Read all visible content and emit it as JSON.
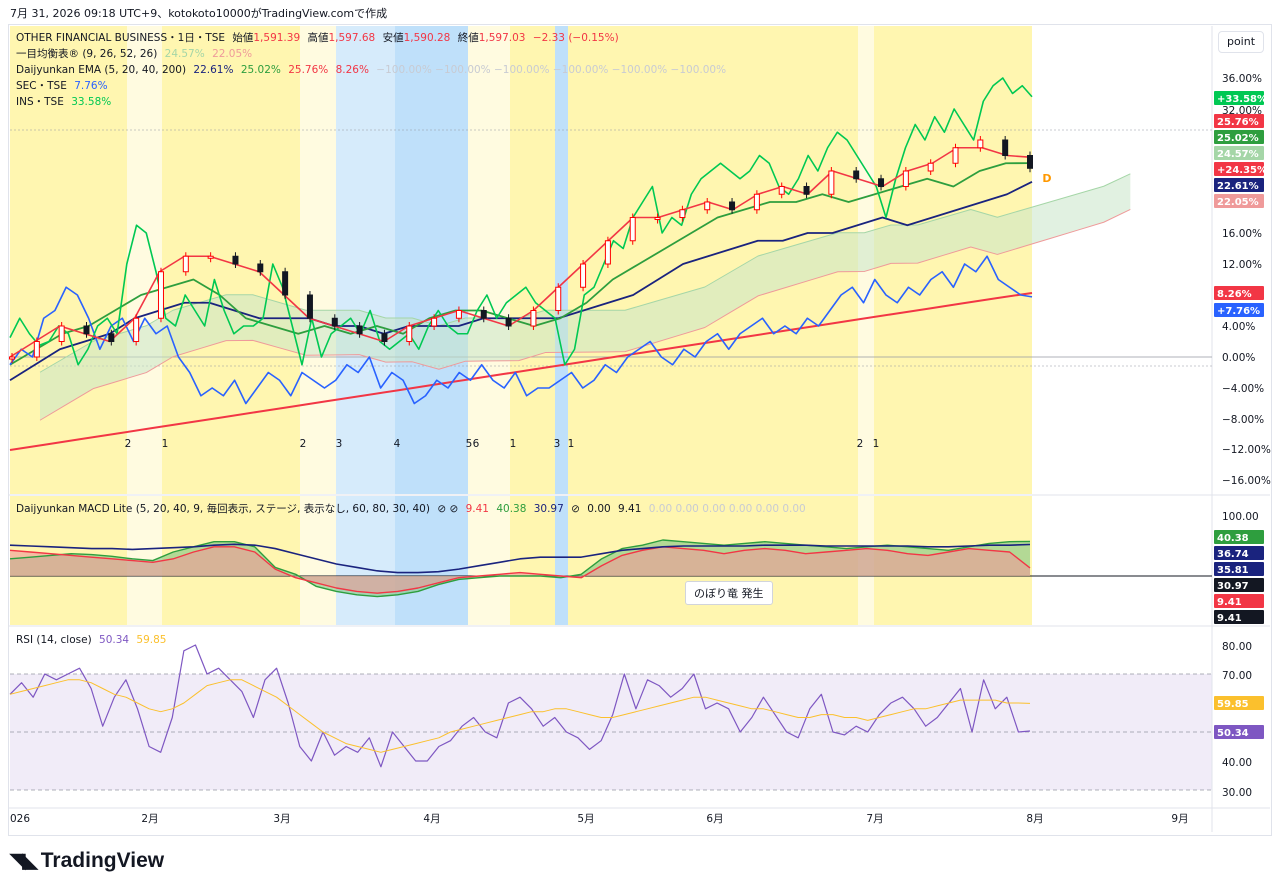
{
  "header": {
    "title": "7月 31, 2026 09:18 UTC+9、kotokoto10000がTradingView.comで作成"
  },
  "scale_button": "point",
  "main_legend": {
    "symbol": "OTHER FINANCIAL BUSINESS・1日・TSE",
    "o_label": "始値",
    "o": "1,591.39",
    "h_label": "高値",
    "h": "1,597.68",
    "l_label": "安値",
    "l": "1,590.28",
    "c_label": "終値",
    "c": "1,597.03",
    "chg": "−2.33 (−0.15%)",
    "ichimoku_name": "一目均衡表® (9, 26, 52, 26)",
    "ichimoku_v1": "24.57%",
    "ichimoku_v2": "22.05%",
    "ema_name": "Daijyunkan EMA (5, 20, 40, 200)",
    "ema_v1": "22.61%",
    "ema_v2": "25.02%",
    "ema_v3": "25.76%",
    "ema_v4": "8.26%",
    "ema_extra": "−100.00%  −100.00%  −100.00%  −100.00%  −100.00%  −100.00%",
    "sec_name": "SEC・TSE",
    "sec_val": "7.76%",
    "ins_name": "INS・TSE",
    "ins_val": "33.58%"
  },
  "macd_legend": {
    "name": "Daijyunkan MACD Lite (5, 20, 40, 9, 毎回表示, ステージ, 表示なし, 60, 80, 30, 40)",
    "icons": "⊘  ⊘",
    "v1": "9.41",
    "v2": "40.38",
    "v3": "30.97",
    "icon3": "⊘",
    "v4": "0.00",
    "v5": "9.41",
    "faint": "0.00  0.00  0.00  0.00  0.00  0.00"
  },
  "rsi_legend": {
    "name": "RSI (14, close)",
    "v1": "50.34",
    "v2": "59.85"
  },
  "tooltip": "のぼり竜 発生",
  "main_axis": [
    "36.00%",
    "32.00%",
    "16.00%",
    "12.00%",
    "4.00%",
    "0.00%",
    "−4.00%",
    "−8.00%",
    "−12.00%",
    "−16.00%"
  ],
  "macd_axis": [
    "100.00"
  ],
  "rsi_axis": [
    "80.00",
    "70.00",
    "40.00",
    "30.00"
  ],
  "main_badges": [
    {
      "text": "+33.58%",
      "color": "#00c853"
    },
    {
      "text": "25.76%",
      "color": "#f23645"
    },
    {
      "text": "25.02%",
      "color": "#2e9e3e"
    },
    {
      "text": "24.57%",
      "color": "#a5d6a7",
      "dark": true
    },
    {
      "text": "+24.35%",
      "color": "#f23645"
    },
    {
      "text": "22.61%",
      "color": "#1a237e"
    },
    {
      "text": "22.05%",
      "color": "#ef9a9a",
      "dark": true
    },
    {
      "text": "8.26%",
      "color": "#f23645"
    },
    {
      "text": "+7.76%",
      "color": "#2962ff"
    }
  ],
  "macd_badges": [
    {
      "text": "40.38",
      "color": "#2e9e3e"
    },
    {
      "text": "36.74",
      "color": "#1a237e"
    },
    {
      "text": "35.81",
      "color": "#1a237e"
    },
    {
      "text": "30.97",
      "color": "#131722"
    },
    {
      "text": "9.41",
      "color": "#f23645"
    },
    {
      "text": "9.41",
      "color": "#131722"
    }
  ],
  "rsi_badges": [
    {
      "text": "59.85",
      "color": "#fbc02d",
      "dark": true
    },
    {
      "text": "50.34",
      "color": "#7e57c2"
    }
  ],
  "x_labels": [
    "026",
    "2月",
    "3月",
    "4月",
    "5月",
    "6月",
    "7月",
    "8月",
    "9月"
  ],
  "stage_markers": [
    "2",
    "1",
    "2",
    "3",
    "4",
    "5",
    "6",
    "1",
    "3",
    "1",
    "2",
    "1"
  ],
  "pct_marker": "D",
  "logo": "TradingView",
  "chart_data": {
    "type": "line",
    "title": "OTHER FINANCIAL BUSINESS・1日・TSE",
    "y_unit": "%",
    "ylim": [
      -16,
      38
    ],
    "x_range": [
      "2026-01-01",
      "2026-09-15"
    ],
    "series": [
      {
        "name": "INS・TSE",
        "last": 33.58,
        "values": [
          2.5,
          5,
          3,
          1.5,
          2,
          4,
          3,
          -1,
          1,
          4,
          5,
          3,
          12,
          17,
          16,
          11,
          5,
          4,
          8,
          6,
          4,
          10,
          6,
          3,
          4,
          4,
          5,
          12,
          9,
          4,
          -1,
          5,
          0,
          3,
          4,
          5,
          3,
          6,
          2,
          1,
          2,
          3,
          1,
          4,
          6,
          4,
          3,
          3,
          6,
          8,
          5,
          7,
          8,
          9,
          7,
          6,
          5,
          -1,
          1,
          8,
          9,
          12,
          15,
          14,
          18,
          20,
          22,
          16,
          18,
          17,
          21,
          23,
          24,
          25,
          24,
          23,
          24,
          26,
          25,
          22,
          21,
          23,
          26,
          24,
          27,
          29,
          28,
          26,
          24,
          22,
          18,
          23,
          27,
          30,
          28,
          31,
          29,
          32,
          30,
          28,
          33,
          35,
          36,
          34,
          35,
          33.58
        ]
      },
      {
        "name": "SEC・TSE",
        "last": 7.76,
        "values": [
          -1,
          1,
          0,
          5,
          6,
          9,
          8,
          5,
          1,
          4,
          5,
          2,
          5,
          3,
          4,
          0,
          -2,
          -5,
          -4,
          -5,
          -3,
          -6,
          -4,
          -2,
          -3,
          -5,
          -2,
          -3,
          -4,
          -3,
          -1,
          -2,
          0,
          -4,
          -2,
          -3,
          -6,
          -5,
          -3,
          -4,
          -2,
          -3,
          -1,
          -3,
          -4,
          -2,
          -5,
          -4,
          -4,
          -3,
          -2,
          -4,
          -3,
          -1,
          -2,
          0,
          1,
          2,
          0,
          -1,
          1,
          0,
          2,
          3,
          1,
          3,
          4,
          5,
          3,
          4,
          3,
          5,
          4,
          6,
          8,
          9,
          7,
          10,
          8,
          7,
          9,
          8,
          10,
          11,
          9,
          12,
          11,
          13,
          10,
          9,
          8,
          7.76
        ]
      },
      {
        "name": "EMA200",
        "last": 8.26,
        "values": [
          -12,
          -11.3,
          -10.6,
          -9.9,
          -9.2,
          -8.5,
          -7.8,
          -7.1,
          -6.4,
          -5.7,
          -5,
          -4.3,
          -3.6,
          -2.9,
          -2.2,
          -1.5,
          -0.8,
          -0.1,
          0.6,
          1.3,
          2,
          2.7,
          3.4,
          4.1,
          4.8,
          5.5,
          6.2,
          6.9,
          7.6,
          8.26
        ]
      },
      {
        "name": "EMA40",
        "last": 22.61,
        "values": [
          -3,
          -1,
          1,
          2,
          3,
          5,
          6,
          7,
          7,
          6,
          5,
          5,
          5,
          4,
          4,
          3,
          4,
          4,
          4,
          5,
          5,
          5,
          5,
          6,
          7,
          8,
          10,
          12,
          13,
          14,
          15,
          15,
          16,
          16,
          17,
          18,
          17,
          18,
          19,
          20,
          21,
          22.61
        ]
      },
      {
        "name": "EMA20",
        "last": 25.02,
        "values": [
          -1,
          1,
          3,
          4,
          6,
          8,
          9,
          10,
          8,
          5,
          4,
          3,
          4,
          3,
          4,
          3,
          5,
          6,
          6,
          5,
          4,
          5,
          7,
          10,
          12,
          14,
          16,
          18,
          19,
          20,
          20,
          21,
          20,
          21,
          22,
          23,
          22,
          24,
          25,
          25.02
        ]
      },
      {
        "name": "EMA5",
        "last": 25.76,
        "values": [
          0,
          2,
          4,
          3,
          2,
          5,
          11,
          13,
          13,
          12,
          11,
          8,
          5,
          4,
          3,
          2,
          4,
          5,
          6,
          5,
          4,
          6,
          9,
          12,
          15,
          18,
          18,
          19,
          20,
          19,
          21,
          22,
          21,
          24,
          23,
          22,
          24,
          25,
          27,
          27,
          26,
          25.76
        ]
      },
      {
        "name": "Close",
        "last": 24.35,
        "values": [
          0,
          2,
          4,
          3,
          2,
          5,
          11,
          13,
          13,
          12,
          11,
          8,
          5,
          4,
          3,
          2,
          4,
          5,
          6,
          5,
          4,
          6,
          9,
          12,
          15,
          18,
          18,
          19,
          20,
          19,
          21,
          22,
          21,
          24,
          23,
          22,
          24,
          25,
          27,
          28,
          26,
          24.35
        ]
      }
    ],
    "ichimoku": {
      "senkou_a_last": 24.57,
      "senkou_b_last": 22.05
    },
    "macd_panel": {
      "name": "Daijyunkan MACD Lite",
      "values": [
        40.38,
        36.74,
        35.81,
        30.97,
        9.41,
        9.41
      ]
    },
    "rsi_panel": {
      "name": "RSI (14, close)",
      "rsi_last": 50.34,
      "ma_last": 59.85,
      "bands": [
        30,
        70
      ],
      "rsi": [
        63,
        67,
        62,
        70,
        68,
        70,
        72,
        65,
        52,
        62,
        68,
        58,
        45,
        43,
        55,
        78,
        80,
        70,
        72,
        68,
        64,
        55,
        68,
        72,
        60,
        45,
        40,
        50,
        42,
        45,
        43,
        48,
        38,
        50,
        45,
        40,
        40,
        45,
        47,
        52,
        55,
        50,
        48,
        60,
        62,
        58,
        52,
        55,
        50,
        48,
        44,
        47,
        56,
        70,
        58,
        68,
        66,
        62,
        65,
        70,
        58,
        60,
        58,
        50,
        55,
        62,
        56,
        50,
        48,
        58,
        63,
        50,
        49,
        52,
        50,
        56,
        60,
        62,
        58,
        52,
        55,
        60,
        65,
        50,
        68,
        58,
        62,
        50,
        50.34
      ],
      "rsi_ma": [
        63,
        64,
        65,
        66,
        67,
        68,
        68,
        67,
        65,
        63,
        62,
        60,
        58,
        57,
        58,
        60,
        63,
        66,
        67,
        68,
        68,
        66,
        64,
        62,
        59,
        56,
        53,
        50,
        48,
        46,
        45,
        44,
        43,
        44,
        45,
        46,
        47,
        48,
        50,
        51,
        52,
        53,
        54,
        55,
        56,
        57,
        57,
        58,
        58,
        57,
        56,
        55,
        55,
        56,
        57,
        58,
        59,
        60,
        61,
        62,
        62,
        61,
        60,
        59,
        58,
        58,
        57,
        56,
        55,
        55,
        56,
        56,
        55,
        55,
        54,
        55,
        56,
        57,
        58,
        58,
        59,
        60,
        61,
        61,
        61,
        61,
        60,
        60,
        59.85
      ]
    }
  }
}
